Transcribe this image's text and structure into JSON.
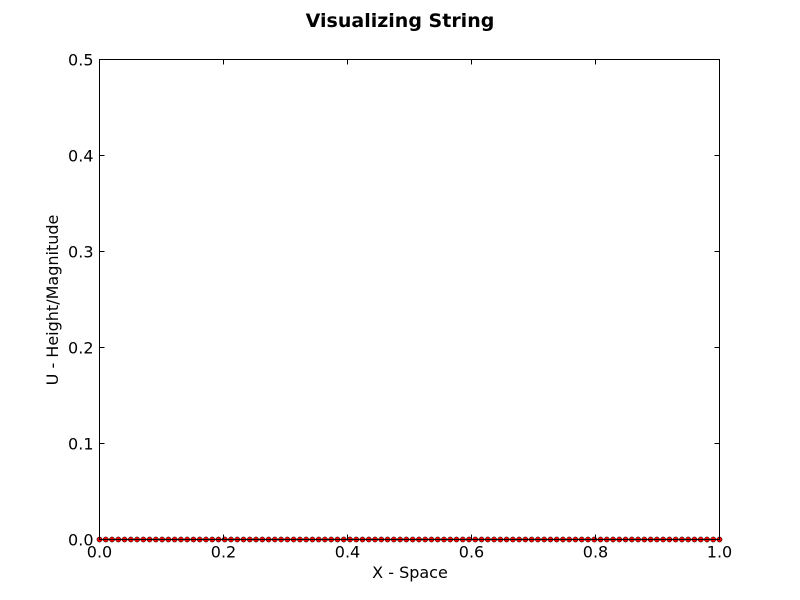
{
  "chart_data": {
    "type": "line",
    "title": "Visualizing String",
    "xlabel": "X - Space",
    "ylabel": "U - Height/Magnitude",
    "xlim": [
      0.0,
      1.0
    ],
    "ylim": [
      0.0,
      0.5
    ],
    "xticks": [
      "0.0",
      "0.2",
      "0.4",
      "0.6",
      "0.8",
      "1.0"
    ],
    "yticks": [
      "0.0",
      "0.1",
      "0.2",
      "0.3",
      "0.4",
      "0.5"
    ],
    "grid": false,
    "series": [
      {
        "color": "#ff0000",
        "marker": "o",
        "x": [
          0.0,
          0.0101,
          0.0202,
          0.0303,
          0.0404,
          0.0505,
          0.0606,
          0.0707,
          0.0808,
          0.0909,
          0.101,
          0.1111,
          0.1212,
          0.1313,
          0.1414,
          0.1515,
          0.1616,
          0.1717,
          0.1818,
          0.1919,
          0.202,
          0.2121,
          0.2222,
          0.2323,
          0.2424,
          0.2525,
          0.2626,
          0.2727,
          0.2828,
          0.2929,
          0.303,
          0.3131,
          0.3232,
          0.3333,
          0.3434,
          0.3535,
          0.3636,
          0.3737,
          0.3838,
          0.3939,
          0.404,
          0.4141,
          0.4242,
          0.4343,
          0.4444,
          0.4545,
          0.4646,
          0.4747,
          0.4848,
          0.4949,
          0.5051,
          0.5152,
          0.5253,
          0.5354,
          0.5455,
          0.5556,
          0.5657,
          0.5758,
          0.5859,
          0.596,
          0.6061,
          0.6162,
          0.6263,
          0.6364,
          0.6465,
          0.6566,
          0.6667,
          0.6768,
          0.6869,
          0.697,
          0.7071,
          0.7172,
          0.7273,
          0.7374,
          0.7475,
          0.7576,
          0.7677,
          0.7778,
          0.7879,
          0.798,
          0.8081,
          0.8182,
          0.8283,
          0.8384,
          0.8485,
          0.8586,
          0.8687,
          0.8788,
          0.8889,
          0.899,
          0.9091,
          0.9192,
          0.9293,
          0.9394,
          0.9495,
          0.9596,
          0.9697,
          0.9798,
          0.9899,
          1.0
        ],
        "y": [
          0,
          0,
          0,
          0,
          0,
          0,
          0,
          0,
          0,
          0,
          0,
          0,
          0,
          0,
          0,
          0,
          0,
          0,
          0,
          0,
          0,
          0,
          0,
          0,
          0,
          0,
          0,
          0,
          0,
          0,
          0,
          0,
          0,
          0,
          0,
          0,
          0,
          0,
          0,
          0,
          0,
          0,
          0,
          0,
          0,
          0,
          0,
          0,
          0,
          0,
          0,
          0,
          0,
          0,
          0,
          0,
          0,
          0,
          0,
          0,
          0,
          0,
          0,
          0,
          0,
          0,
          0,
          0,
          0,
          0,
          0,
          0,
          0,
          0,
          0,
          0,
          0,
          0,
          0,
          0,
          0,
          0,
          0,
          0,
          0,
          0,
          0,
          0,
          0,
          0,
          0,
          0,
          0,
          0,
          0,
          0,
          0,
          0,
          0,
          0
        ]
      }
    ]
  }
}
